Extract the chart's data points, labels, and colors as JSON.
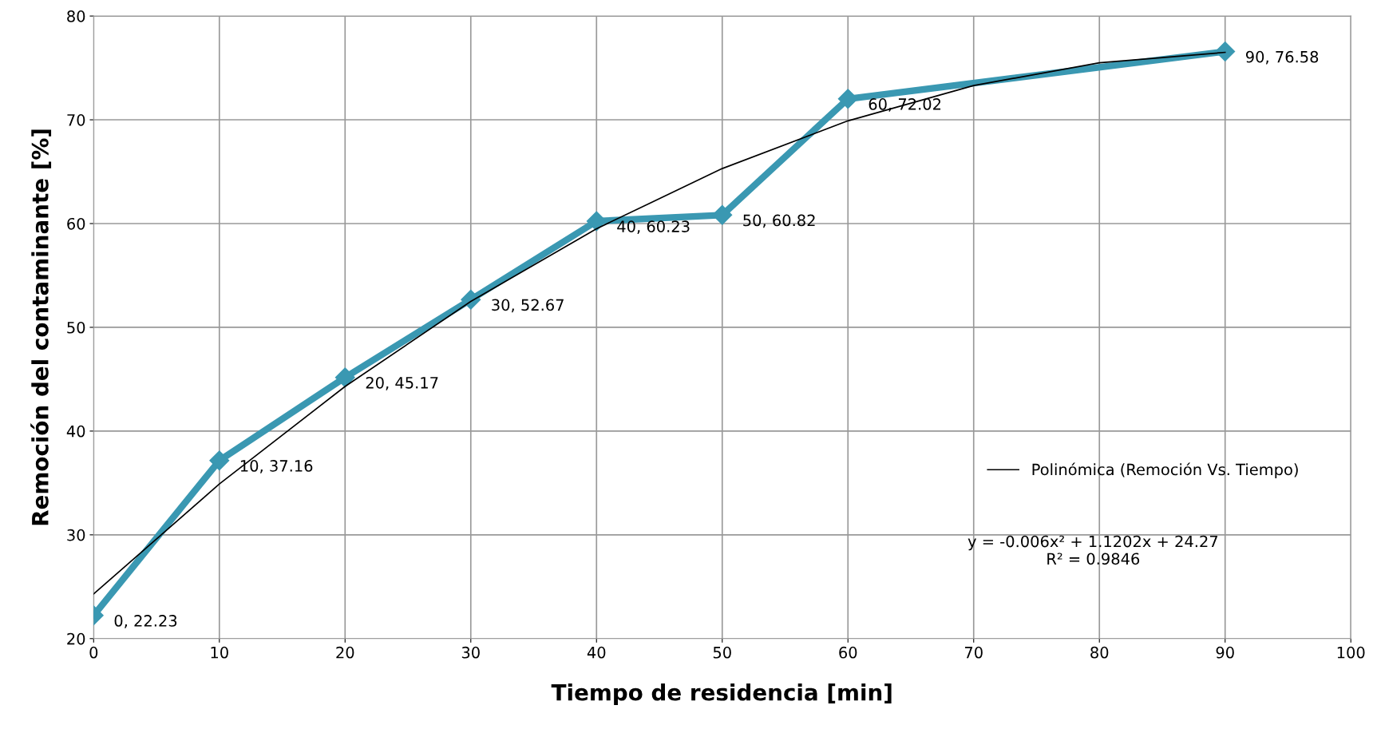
{
  "chart_data": {
    "type": "line",
    "xlabel": "Tiempo de residencia [min]",
    "ylabel": "Remoción del contaminante [%]",
    "x": [
      0,
      10,
      20,
      30,
      40,
      50,
      60,
      90
    ],
    "series": [
      {
        "color": "#3a98b2",
        "marker": "diamond",
        "values": [
          22.23,
          37.16,
          45.17,
          52.67,
          60.23,
          60.82,
          72.02,
          76.58
        ],
        "value_labels": [
          "0, 22.23",
          "10, 37.16",
          "20, 45.17",
          "30, 52.67",
          "40, 60.23",
          "50, 60.82",
          "60, 72.02",
          "90, 76.58"
        ]
      },
      {
        "name": "Polinómica (Remoción Vs. Tiempo)",
        "type": "line",
        "color": "#000000",
        "marker": "none",
        "x": [
          0,
          10,
          20,
          30,
          40,
          50,
          60,
          70,
          80,
          90
        ],
        "values": [
          24.3,
          34.9,
          44.3,
          52.5,
          59.5,
          65.3,
          69.9,
          73.3,
          75.5,
          76.5
        ]
      }
    ],
    "annotations": [
      "y = -0.006x² + 1.1202x + 24.27\nR² = 0.9846"
    ],
    "xlim": [
      0,
      100
    ],
    "xticks": [
      0,
      10,
      20,
      30,
      40,
      50,
      60,
      70,
      80,
      90,
      100
    ],
    "ylim": [
      20,
      80
    ],
    "yticks": [
      20,
      30,
      40,
      50,
      60,
      70,
      80
    ],
    "grid": true,
    "legend": "right"
  }
}
